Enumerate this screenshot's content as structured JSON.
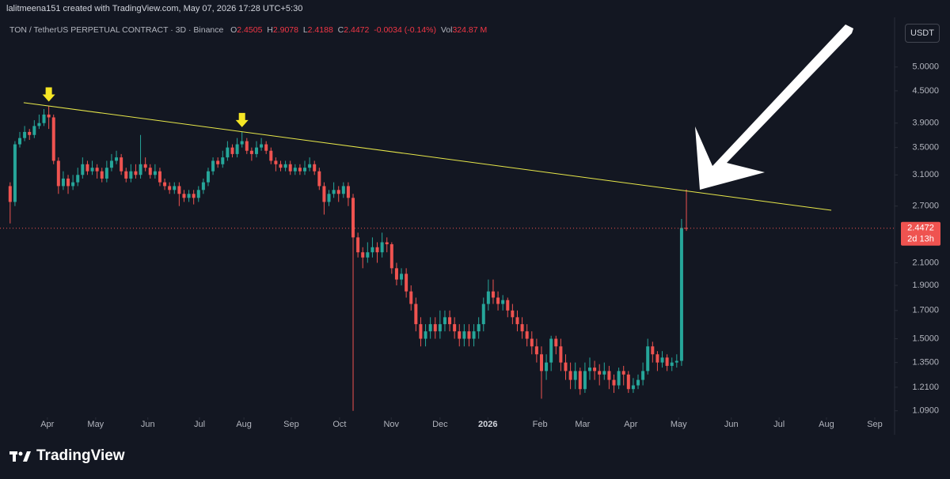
{
  "header": "lalitmeena151 created with TradingView.com, May 07, 2026 17:28 UTC+5:30",
  "legend": {
    "symbol": "TON / TetherUS PERPETUAL CONTRACT · 3D · Binance",
    "o_key": "O",
    "o": "2.4505",
    "h_key": "H",
    "h": "2.9078",
    "l_key": "L",
    "l": "2.4188",
    "c_key": "C",
    "c": "2.4472",
    "change": "-0.0034 (-0.14%)",
    "vol_key": "Vol",
    "vol": "324.87 M"
  },
  "currency_button": "USDT",
  "footer_logo": "TradingView",
  "chart_data": {
    "type": "candlestick",
    "up_color": "#26a69a",
    "down_color": "#ef5350",
    "log_scale": true,
    "ylim": [
      1.07,
      6.1
    ],
    "yticks": [
      {
        "value": 5,
        "label": "5.0000"
      },
      {
        "value": 4.5,
        "label": "4.5000"
      },
      {
        "value": 3.9,
        "label": "3.9000"
      },
      {
        "value": 3.5,
        "label": "3.5000"
      },
      {
        "value": 3.1,
        "label": "3.1000"
      },
      {
        "value": 2.7,
        "label": "2.7000"
      },
      {
        "value": 2.1,
        "label": "2.1000"
      },
      {
        "value": 1.9,
        "label": "1.9000"
      },
      {
        "value": 1.7,
        "label": "1.7000"
      },
      {
        "value": 1.5,
        "label": "1.5000"
      },
      {
        "value": 1.35,
        "label": "1.3500"
      },
      {
        "value": 1.21,
        "label": "1.2100"
      },
      {
        "value": 1.09,
        "label": "1.0900"
      }
    ],
    "xlim": [
      -2.1,
      183.1
    ],
    "xticks": [
      {
        "value": 7.7,
        "label": "Apr"
      },
      {
        "value": 17.7,
        "label": "May"
      },
      {
        "value": 28.5,
        "label": "Jun"
      },
      {
        "value": 39.2,
        "label": "Jul"
      },
      {
        "value": 48.4,
        "label": "Aug"
      },
      {
        "value": 58.2,
        "label": "Sep"
      },
      {
        "value": 68.2,
        "label": "Oct"
      },
      {
        "value": 78.9,
        "label": "Nov"
      },
      {
        "value": 89,
        "label": "Dec"
      },
      {
        "value": 98.9,
        "label": "2026",
        "bold": true
      },
      {
        "value": 109.7,
        "label": "Feb"
      },
      {
        "value": 118.5,
        "label": "Mar"
      },
      {
        "value": 128.5,
        "label": "Apr"
      },
      {
        "value": 138.4,
        "label": "May"
      },
      {
        "value": 149.3,
        "label": "Jun"
      },
      {
        "value": 159.2,
        "label": "Jul"
      },
      {
        "value": 169,
        "label": "Aug"
      },
      {
        "value": 179,
        "label": "Sep"
      }
    ],
    "candles": [
      [
        2.95,
        3.0,
        2.5,
        2.75
      ],
      [
        2.75,
        3.6,
        2.7,
        3.55
      ],
      [
        3.55,
        3.75,
        3.5,
        3.65
      ],
      [
        3.65,
        3.85,
        3.6,
        3.75
      ],
      [
        3.75,
        3.8,
        3.62,
        3.7
      ],
      [
        3.7,
        3.95,
        3.65,
        3.85
      ],
      [
        3.85,
        4.05,
        3.8,
        3.9
      ],
      [
        3.9,
        4.15,
        3.85,
        4.05
      ],
      [
        4.05,
        4.2,
        3.8,
        4.0
      ],
      [
        4.0,
        4.05,
        3.25,
        3.3
      ],
      [
        3.3,
        3.35,
        2.85,
        2.95
      ],
      [
        2.95,
        3.15,
        2.9,
        3.05
      ],
      [
        3.05,
        3.1,
        2.85,
        2.95
      ],
      [
        2.95,
        3.1,
        2.9,
        3.0
      ],
      [
        3.0,
        3.2,
        2.95,
        3.1
      ],
      [
        3.1,
        3.35,
        3.05,
        3.25
      ],
      [
        3.25,
        3.3,
        3.1,
        3.15
      ],
      [
        3.15,
        3.3,
        3.1,
        3.2
      ],
      [
        3.2,
        3.25,
        3.05,
        3.15
      ],
      [
        3.15,
        3.2,
        3.0,
        3.05
      ],
      [
        3.05,
        3.3,
        3.0,
        3.2
      ],
      [
        3.2,
        3.4,
        3.15,
        3.3
      ],
      [
        3.3,
        3.45,
        3.25,
        3.35
      ],
      [
        3.35,
        3.4,
        3.1,
        3.15
      ],
      [
        3.15,
        3.2,
        3.0,
        3.05
      ],
      [
        3.05,
        3.25,
        3.0,
        3.15
      ],
      [
        3.15,
        3.25,
        3.05,
        3.1
      ],
      [
        3.1,
        3.7,
        3.05,
        3.25
      ],
      [
        3.25,
        3.35,
        3.15,
        3.2
      ],
      [
        3.2,
        3.25,
        3.05,
        3.1
      ],
      [
        3.1,
        3.25,
        3.05,
        3.15
      ],
      [
        3.15,
        3.2,
        2.95,
        3.0
      ],
      [
        3.0,
        3.05,
        2.9,
        2.95
      ],
      [
        2.95,
        3.0,
        2.85,
        2.9
      ],
      [
        2.9,
        3.0,
        2.85,
        2.95
      ],
      [
        2.95,
        3.0,
        2.7,
        2.85
      ],
      [
        2.85,
        2.9,
        2.75,
        2.8
      ],
      [
        2.8,
        2.9,
        2.75,
        2.85
      ],
      [
        2.85,
        2.9,
        2.72,
        2.8
      ],
      [
        2.8,
        2.95,
        2.75,
        2.9
      ],
      [
        2.9,
        3.05,
        2.85,
        3.0
      ],
      [
        3.0,
        3.2,
        2.95,
        3.15
      ],
      [
        3.15,
        3.35,
        3.1,
        3.3
      ],
      [
        3.3,
        3.35,
        3.2,
        3.25
      ],
      [
        3.25,
        3.45,
        3.2,
        3.35
      ],
      [
        3.35,
        3.6,
        3.3,
        3.5
      ],
      [
        3.5,
        3.55,
        3.35,
        3.4
      ],
      [
        3.4,
        3.65,
        3.35,
        3.55
      ],
      [
        3.55,
        3.75,
        3.5,
        3.6
      ],
      [
        3.6,
        3.65,
        3.4,
        3.45
      ],
      [
        3.45,
        3.5,
        3.3,
        3.4
      ],
      [
        3.4,
        3.6,
        3.35,
        3.5
      ],
      [
        3.5,
        3.65,
        3.45,
        3.55
      ],
      [
        3.55,
        3.6,
        3.4,
        3.45
      ],
      [
        3.45,
        3.5,
        3.25,
        3.3
      ],
      [
        3.3,
        3.35,
        3.15,
        3.25
      ],
      [
        3.25,
        3.3,
        3.15,
        3.2
      ],
      [
        3.2,
        3.3,
        3.15,
        3.25
      ],
      [
        3.25,
        3.3,
        3.1,
        3.15
      ],
      [
        3.15,
        3.25,
        3.1,
        3.2
      ],
      [
        3.2,
        3.25,
        3.1,
        3.15
      ],
      [
        3.15,
        3.3,
        3.1,
        3.2
      ],
      [
        3.2,
        3.35,
        3.15,
        3.25
      ],
      [
        3.25,
        3.3,
        3.1,
        3.15
      ],
      [
        3.15,
        3.2,
        2.9,
        2.95
      ],
      [
        2.95,
        3.0,
        2.6,
        2.75
      ],
      [
        2.75,
        2.9,
        2.7,
        2.85
      ],
      [
        2.85,
        3.0,
        2.8,
        2.9
      ],
      [
        2.9,
        2.95,
        2.75,
        2.85
      ],
      [
        2.85,
        3.0,
        2.8,
        2.95
      ],
      [
        2.95,
        3.0,
        2.7,
        2.8
      ],
      [
        2.8,
        2.85,
        1.09,
        2.35
      ],
      [
        2.35,
        2.4,
        2.15,
        2.2
      ],
      [
        2.2,
        2.25,
        2.05,
        2.15
      ],
      [
        2.15,
        2.3,
        2.1,
        2.2
      ],
      [
        2.2,
        2.35,
        2.15,
        2.25
      ],
      [
        2.25,
        2.3,
        2.1,
        2.2
      ],
      [
        2.2,
        2.4,
        2.15,
        2.3
      ],
      [
        2.3,
        2.35,
        2.2,
        2.28
      ],
      [
        2.28,
        2.3,
        2.0,
        2.05
      ],
      [
        2.05,
        2.1,
        1.9,
        1.95
      ],
      [
        1.95,
        2.05,
        1.9,
        2.0
      ],
      [
        2.0,
        2.05,
        1.8,
        1.85
      ],
      [
        1.85,
        1.9,
        1.7,
        1.75
      ],
      [
        1.75,
        1.8,
        1.55,
        1.6
      ],
      [
        1.6,
        1.65,
        1.45,
        1.5
      ],
      [
        1.5,
        1.6,
        1.45,
        1.55
      ],
      [
        1.55,
        1.65,
        1.5,
        1.6
      ],
      [
        1.6,
        1.65,
        1.5,
        1.55
      ],
      [
        1.55,
        1.7,
        1.5,
        1.6
      ],
      [
        1.6,
        1.7,
        1.55,
        1.65
      ],
      [
        1.65,
        1.7,
        1.55,
        1.6
      ],
      [
        1.6,
        1.65,
        1.5,
        1.55
      ],
      [
        1.55,
        1.6,
        1.45,
        1.5
      ],
      [
        1.5,
        1.6,
        1.45,
        1.55
      ],
      [
        1.55,
        1.6,
        1.45,
        1.5
      ],
      [
        1.5,
        1.6,
        1.45,
        1.55
      ],
      [
        1.55,
        1.65,
        1.5,
        1.6
      ],
      [
        1.6,
        1.8,
        1.55,
        1.75
      ],
      [
        1.75,
        1.95,
        1.7,
        1.85
      ],
      [
        1.85,
        1.95,
        1.75,
        1.8
      ],
      [
        1.8,
        1.85,
        1.7,
        1.75
      ],
      [
        1.75,
        1.82,
        1.7,
        1.78
      ],
      [
        1.78,
        1.8,
        1.65,
        1.7
      ],
      [
        1.7,
        1.75,
        1.6,
        1.65
      ],
      [
        1.65,
        1.7,
        1.55,
        1.6
      ],
      [
        1.6,
        1.65,
        1.5,
        1.55
      ],
      [
        1.55,
        1.6,
        1.45,
        1.5
      ],
      [
        1.5,
        1.55,
        1.4,
        1.45
      ],
      [
        1.45,
        1.5,
        1.35,
        1.4
      ],
      [
        1.4,
        1.45,
        1.15,
        1.3
      ],
      [
        1.3,
        1.4,
        1.25,
        1.35
      ],
      [
        1.35,
        1.52,
        1.3,
        1.5
      ],
      [
        1.5,
        1.52,
        1.4,
        1.45
      ],
      [
        1.45,
        1.5,
        1.3,
        1.35
      ],
      [
        1.35,
        1.4,
        1.25,
        1.3
      ],
      [
        1.3,
        1.35,
        1.2,
        1.25
      ],
      [
        1.25,
        1.35,
        1.2,
        1.3
      ],
      [
        1.3,
        1.32,
        1.17,
        1.2
      ],
      [
        1.2,
        1.35,
        1.18,
        1.3
      ],
      [
        1.3,
        1.38,
        1.25,
        1.32
      ],
      [
        1.32,
        1.36,
        1.25,
        1.3
      ],
      [
        1.3,
        1.34,
        1.22,
        1.28
      ],
      [
        1.28,
        1.35,
        1.25,
        1.3
      ],
      [
        1.3,
        1.33,
        1.2,
        1.25
      ],
      [
        1.25,
        1.28,
        1.18,
        1.22
      ],
      [
        1.22,
        1.32,
        1.2,
        1.3
      ],
      [
        1.3,
        1.33,
        1.22,
        1.28
      ],
      [
        1.28,
        1.3,
        1.18,
        1.2
      ],
      [
        1.2,
        1.26,
        1.18,
        1.22
      ],
      [
        1.22,
        1.28,
        1.2,
        1.25
      ],
      [
        1.25,
        1.35,
        1.22,
        1.3
      ],
      [
        1.3,
        1.5,
        1.28,
        1.45
      ],
      [
        1.45,
        1.48,
        1.35,
        1.4
      ],
      [
        1.4,
        1.42,
        1.3,
        1.35
      ],
      [
        1.35,
        1.42,
        1.32,
        1.38
      ],
      [
        1.38,
        1.4,
        1.3,
        1.33
      ],
      [
        1.33,
        1.38,
        1.3,
        1.35
      ],
      [
        1.35,
        1.4,
        1.32,
        1.36
      ],
      [
        1.36,
        2.55,
        1.33,
        2.4505
      ],
      [
        2.4505,
        2.9078,
        2.4188,
        2.4472
      ]
    ],
    "highlight_candles": [
      8,
      48
    ],
    "highlight_color": "#f5e625",
    "trendline": {
      "x": [
        2.8,
        170
      ],
      "y": [
        4.27,
        2.65
      ],
      "color": "#e8e84a"
    },
    "last_price_label": "2.4472",
    "countdown": "2d 13h"
  }
}
